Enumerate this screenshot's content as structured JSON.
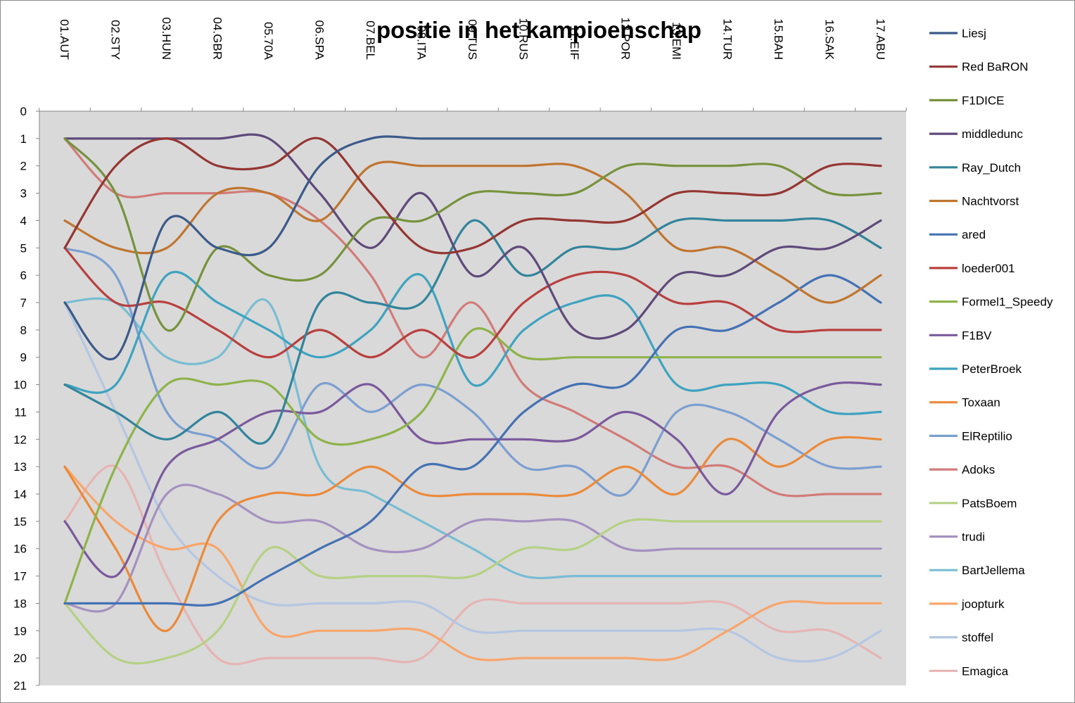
{
  "chart_data": {
    "type": "line",
    "title": "positie in het kampioenschap",
    "xlabel": "",
    "ylabel": "",
    "categories": [
      "01.AUT",
      "02.STY",
      "03.HUN",
      "04.GBR",
      "05.70A",
      "06.SPA",
      "07.BEL",
      "08.ITA",
      "09.TUS",
      "10.RUS",
      "11.EIF",
      "12.POR",
      "13.EMI",
      "14.TUR",
      "15.BAH",
      "16.SAK",
      "17.ABU"
    ],
    "ylim": [
      0,
      21
    ],
    "y_inverted": true,
    "y_ticks": [
      "0",
      "1",
      "2",
      "3",
      "4",
      "5",
      "6",
      "7",
      "8",
      "9",
      "10",
      "11",
      "12",
      "13",
      "14",
      "15",
      "16",
      "17",
      "18",
      "19",
      "20",
      "21"
    ],
    "plot_background": "#d9d9d9",
    "grid": false,
    "legend_position": "right",
    "series": [
      {
        "name": "Liesj",
        "color": "#3b5a8a",
        "values": [
          7,
          9,
          4,
          5,
          5,
          2,
          1,
          1,
          1,
          1,
          1,
          1,
          1,
          1,
          1,
          1,
          1
        ]
      },
      {
        "name": "Red BaRON",
        "color": "#943632",
        "values": [
          5,
          2,
          1,
          2,
          2,
          1,
          3,
          5,
          5,
          4,
          4,
          4,
          3,
          3,
          3,
          2,
          2
        ]
      },
      {
        "name": "F1DICE",
        "color": "#76923c",
        "values": [
          1,
          3,
          8,
          5,
          6,
          6,
          4,
          4,
          3,
          3,
          3,
          2,
          2,
          2,
          2,
          3,
          3
        ]
      },
      {
        "name": "middledunc",
        "color": "#5f497a",
        "values": [
          1,
          1,
          1,
          1,
          1,
          3,
          5,
          3,
          6,
          5,
          8,
          8,
          6,
          6,
          5,
          5,
          4
        ]
      },
      {
        "name": "Ray_Dutch",
        "color": "#31849b",
        "values": [
          10,
          11,
          12,
          11,
          12,
          7,
          7,
          7,
          4,
          6,
          5,
          5,
          4,
          4,
          4,
          4,
          5
        ]
      },
      {
        "name": "Nachtvorst",
        "color": "#c0752f",
        "values": [
          4,
          5,
          5,
          3,
          3,
          4,
          2,
          2,
          2,
          2,
          2,
          3,
          5,
          5,
          6,
          7,
          6
        ]
      },
      {
        "name": "ared",
        "color": "#4471b4",
        "values": [
          18,
          18,
          18,
          18,
          17,
          16,
          15,
          13,
          13,
          11,
          10,
          10,
          8,
          8,
          7,
          6,
          7
        ]
      },
      {
        "name": "loeder001",
        "color": "#b8403e",
        "values": [
          5,
          7,
          7,
          8,
          9,
          8,
          9,
          8,
          9,
          7,
          6,
          6,
          7,
          7,
          8,
          8,
          8
        ]
      },
      {
        "name": "Formel1_Speedy",
        "color": "#8eb34a",
        "values": [
          18,
          13,
          10,
          10,
          10,
          12,
          12,
          11,
          8,
          9,
          9,
          9,
          9,
          9,
          9,
          9,
          9
        ]
      },
      {
        "name": "F1BV",
        "color": "#7a599c",
        "values": [
          15,
          17,
          13,
          12,
          11,
          11,
          10,
          12,
          12,
          12,
          12,
          11,
          12,
          14,
          11,
          10,
          10
        ]
      },
      {
        "name": "PeterBroek",
        "color": "#3ea3c0",
        "values": [
          10,
          10,
          6,
          7,
          8,
          9,
          8,
          6,
          10,
          8,
          7,
          7,
          10,
          10,
          10,
          11,
          11
        ]
      },
      {
        "name": "Toxaan",
        "color": "#eb8a3a",
        "values": [
          13,
          16,
          19,
          15,
          14,
          14,
          13,
          14,
          14,
          14,
          14,
          13,
          14,
          12,
          13,
          12,
          12
        ]
      },
      {
        "name": "ElReptilio",
        "color": "#7b9fd1",
        "values": [
          5,
          6,
          11,
          12,
          13,
          10,
          11,
          10,
          11,
          13,
          13,
          14,
          11,
          11,
          12,
          13,
          13
        ]
      },
      {
        "name": "Adoks",
        "color": "#d27b78",
        "values": [
          1,
          3,
          3,
          3,
          3,
          4,
          6,
          9,
          7,
          10,
          11,
          12,
          13,
          13,
          14,
          14,
          14
        ]
      },
      {
        "name": "PatsBoem",
        "color": "#b5d184",
        "values": [
          18,
          20,
          20,
          19,
          16,
          17,
          17,
          17,
          17,
          16,
          16,
          15,
          15,
          15,
          15,
          15,
          15
        ]
      },
      {
        "name": "trudi",
        "color": "#a591c0",
        "values": [
          18,
          18,
          14,
          14,
          15,
          15,
          16,
          16,
          15,
          15,
          15,
          16,
          16,
          16,
          16,
          16,
          16
        ]
      },
      {
        "name": "BartJellema",
        "color": "#78bdd3",
        "values": [
          7,
          7,
          9,
          9,
          7,
          13,
          14,
          15,
          16,
          17,
          17,
          17,
          17,
          17,
          17,
          17,
          17
        ]
      },
      {
        "name": "joopturk",
        "color": "#f8a56b",
        "values": [
          13,
          15,
          16,
          16,
          19,
          19,
          19,
          19,
          20,
          20,
          20,
          20,
          20,
          19,
          18,
          18,
          18
        ]
      },
      {
        "name": "stoffel",
        "color": "#b4c6e2",
        "values": [
          7,
          11,
          15,
          17,
          18,
          18,
          18,
          18,
          19,
          19,
          19,
          19,
          19,
          19,
          20,
          20,
          19
        ]
      },
      {
        "name": "Emagica",
        "color": "#e6b4b3",
        "values": [
          15,
          13,
          17,
          20,
          20,
          20,
          20,
          20,
          18,
          18,
          18,
          18,
          18,
          18,
          19,
          19,
          20
        ]
      }
    ]
  }
}
